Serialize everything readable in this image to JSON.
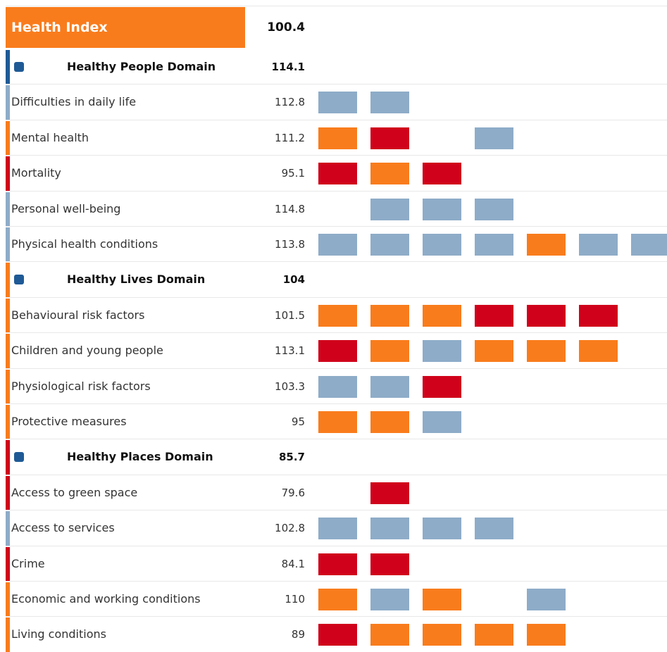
{
  "header": {
    "title": "Health Index",
    "value": 100.4,
    "color": "#f97c1c"
  },
  "domains": [
    {
      "label": "Healthy People Domain",
      "value": 114.1,
      "color": "#1f5a96",
      "indicators": [
        {
          "label": "Difficulties in daily life",
          "value": 112.8,
          "color": "#8eacc8",
          "cells": [
            "#8eacc8",
            "#8eacc8"
          ]
        },
        {
          "label": "Mental health",
          "value": 111.2,
          "color": "#f97c1c",
          "cells": [
            "#f97c1c",
            "#d0021b",
            null,
            "#8eacc8"
          ]
        },
        {
          "label": "Mortality",
          "value": 95.1,
          "color": "#d0021b",
          "cells": [
            "#d0021b",
            "#f97c1c",
            "#d0021b"
          ]
        },
        {
          "label": "Personal well-being",
          "value": 114.8,
          "color": "#8eacc8",
          "cells": [
            null,
            "#8eacc8",
            "#8eacc8",
            "#8eacc8"
          ]
        },
        {
          "label": "Physical health conditions",
          "value": 113.8,
          "color": "#8eacc8",
          "cells": [
            "#8eacc8",
            "#8eacc8",
            "#8eacc8",
            "#8eacc8",
            "#f97c1c",
            "#8eacc8",
            "#8eacc8"
          ]
        }
      ]
    },
    {
      "label": "Healthy Lives Domain",
      "value": 104,
      "color": "#f97c1c",
      "indicators": [
        {
          "label": "Behavioural risk factors",
          "value": 101.5,
          "color": "#f97c1c",
          "cells": [
            "#f97c1c",
            "#f97c1c",
            "#f97c1c",
            "#d0021b",
            "#d0021b",
            "#d0021b"
          ]
        },
        {
          "label": "Children and young people",
          "value": 113.1,
          "color": "#f97c1c",
          "cells": [
            "#d0021b",
            "#f97c1c",
            "#8eacc8",
            "#f97c1c",
            "#f97c1c",
            "#f97c1c"
          ]
        },
        {
          "label": "Physiological risk factors",
          "value": 103.3,
          "color": "#f97c1c",
          "cells": [
            "#8eacc8",
            "#8eacc8",
            "#d0021b"
          ]
        },
        {
          "label": "Protective measures",
          "value": 95,
          "color": "#f97c1c",
          "cells": [
            "#f97c1c",
            "#f97c1c",
            "#8eacc8"
          ]
        }
      ]
    },
    {
      "label": "Healthy Places Domain",
      "value": 85.7,
      "color": "#d0021b",
      "indicators": [
        {
          "label": "Access to green space",
          "value": 79.6,
          "color": "#d0021b",
          "cells": [
            null,
            "#d0021b"
          ]
        },
        {
          "label": "Access to services",
          "value": 102.8,
          "color": "#8eacc8",
          "cells": [
            "#8eacc8",
            "#8eacc8",
            "#8eacc8",
            "#8eacc8"
          ]
        },
        {
          "label": "Crime",
          "value": 84.1,
          "color": "#d0021b",
          "cells": [
            "#d0021b",
            "#d0021b"
          ]
        },
        {
          "label": "Economic and working conditions",
          "value": 110,
          "color": "#f97c1c",
          "cells": [
            "#f97c1c",
            "#8eacc8",
            "#f97c1c",
            null,
            "#8eacc8"
          ]
        },
        {
          "label": "Living conditions",
          "value": 89,
          "color": "#f97c1c",
          "cells": [
            "#d0021b",
            "#f97c1c",
            "#f97c1c",
            "#f97c1c",
            "#f97c1c"
          ]
        }
      ]
    }
  ]
}
